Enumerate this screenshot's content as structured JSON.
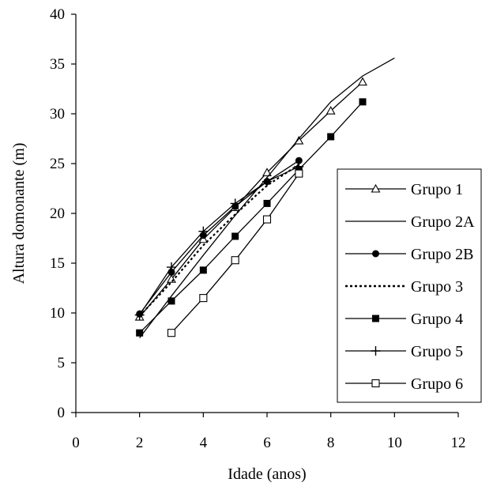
{
  "chart_data": {
    "type": "line",
    "title": "",
    "xlabel": "Idade (anos)",
    "ylabel": "Altura domonante (m)",
    "xlim": [
      0,
      12
    ],
    "ylim": [
      0,
      40
    ],
    "x_ticks": [
      0,
      2,
      4,
      6,
      8,
      10,
      12
    ],
    "y_ticks": [
      0,
      5,
      10,
      15,
      20,
      25,
      30,
      35,
      40
    ],
    "grid": false,
    "legend_position": "right",
    "series": [
      {
        "name": "Grupo 1",
        "marker": "open-triangle",
        "dash": "solid",
        "x": [
          2,
          3,
          4,
          5,
          6,
          7,
          8,
          9
        ],
        "y": [
          9.6,
          13.4,
          17.4,
          20.6,
          24.1,
          27.3,
          30.3,
          33.2
        ]
      },
      {
        "name": "Grupo 2A",
        "marker": "none",
        "dash": "solid",
        "x": [
          2,
          3,
          4,
          5,
          6,
          7,
          8,
          9,
          10
        ],
        "y": [
          7.5,
          11.7,
          15.8,
          19.8,
          23.6,
          27.5,
          31.2,
          33.8,
          35.6
        ]
      },
      {
        "name": "Grupo 2B",
        "marker": "filled-circle",
        "dash": "solid",
        "x": [
          2,
          3,
          4,
          5,
          6,
          7
        ],
        "y": [
          9.9,
          14.1,
          17.8,
          20.7,
          23.2,
          25.3
        ]
      },
      {
        "name": "Grupo 3",
        "marker": "none",
        "dash": "dotted",
        "x": [
          2,
          3,
          4,
          5,
          6,
          7
        ],
        "y": [
          9.7,
          13.1,
          16.8,
          19.9,
          22.8,
          24.9
        ]
      },
      {
        "name": "Grupo 4",
        "marker": "filled-square",
        "dash": "solid",
        "x": [
          2,
          3,
          4,
          5,
          6,
          7,
          8,
          9
        ],
        "y": [
          8.0,
          11.2,
          14.3,
          17.7,
          21.0,
          24.4,
          27.7,
          31.2
        ]
      },
      {
        "name": "Grupo 5",
        "marker": "plus",
        "dash": "solid",
        "x": [
          2,
          3,
          4,
          5,
          6,
          7
        ],
        "y": [
          9.8,
          14.6,
          18.2,
          21.0,
          23.2,
          24.7
        ]
      },
      {
        "name": "Grupo 6",
        "marker": "open-square",
        "dash": "solid",
        "x": [
          3,
          4,
          5,
          6,
          7
        ],
        "y": [
          8.0,
          11.5,
          15.3,
          19.4,
          24.0
        ]
      }
    ]
  }
}
